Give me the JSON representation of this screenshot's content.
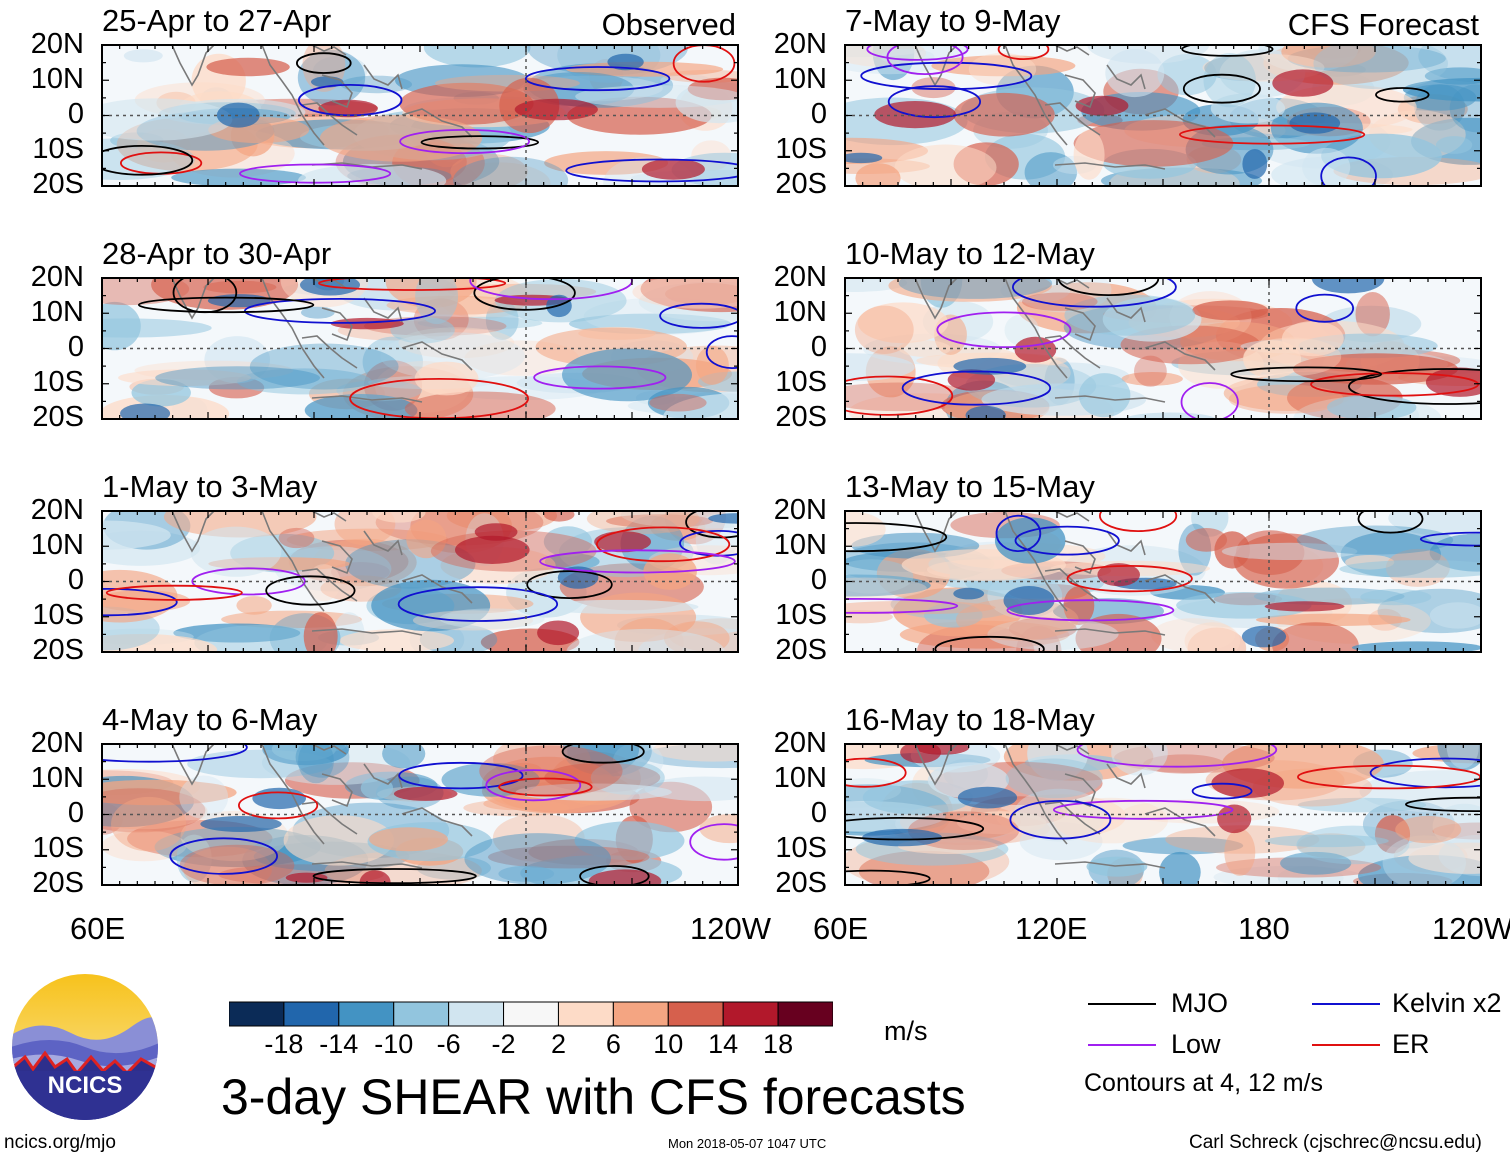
{
  "panels": [
    {
      "title": "25-Apr to 27-Apr",
      "tag": "Observed"
    },
    {
      "title": "28-Apr to 30-Apr",
      "tag": ""
    },
    {
      "title": "1-May to 3-May",
      "tag": ""
    },
    {
      "title": "4-May to 6-May",
      "tag": ""
    },
    {
      "title": "7-May to 9-May",
      "tag": "CFS Forecast"
    },
    {
      "title": "10-May to 12-May",
      "tag": ""
    },
    {
      "title": "13-May to 15-May",
      "tag": ""
    },
    {
      "title": "16-May to 18-May",
      "tag": ""
    }
  ],
  "lat_labels": [
    "20N",
    "10N",
    "0",
    "10S",
    "20S"
  ],
  "lon_labels": [
    "60E",
    "120E",
    "180",
    "120W"
  ],
  "colorbar": {
    "ticks": [
      "-18",
      "-14",
      "-10",
      "-6",
      "-2",
      "2",
      "6",
      "10",
      "14",
      "18"
    ],
    "colors": [
      "#0b2b57",
      "#2166ac",
      "#4393c3",
      "#92c5de",
      "#d1e5f0",
      "#f7f7f7",
      "#fddbc7",
      "#f4a582",
      "#d6604d",
      "#b2182b",
      "#67001f"
    ],
    "units": "m/s"
  },
  "main_title": "3-day SHEAR with CFS forecasts",
  "legend": [
    {
      "label": "MJO",
      "color": "#000000"
    },
    {
      "label": "Kelvin x2",
      "color": "#1010d0"
    },
    {
      "label": "Low",
      "color": "#a020f0"
    },
    {
      "label": "ER",
      "color": "#e01010"
    }
  ],
  "contour_note": "Contours at 4, 12 m/s",
  "logo_text": "NCICS",
  "footer": {
    "url": "ncics.org/mjo",
    "timestamp": "Mon 2018-05-07 1047 UTC",
    "credit": "Carl Schreck (cjschrec@ncsu.edu)"
  }
}
